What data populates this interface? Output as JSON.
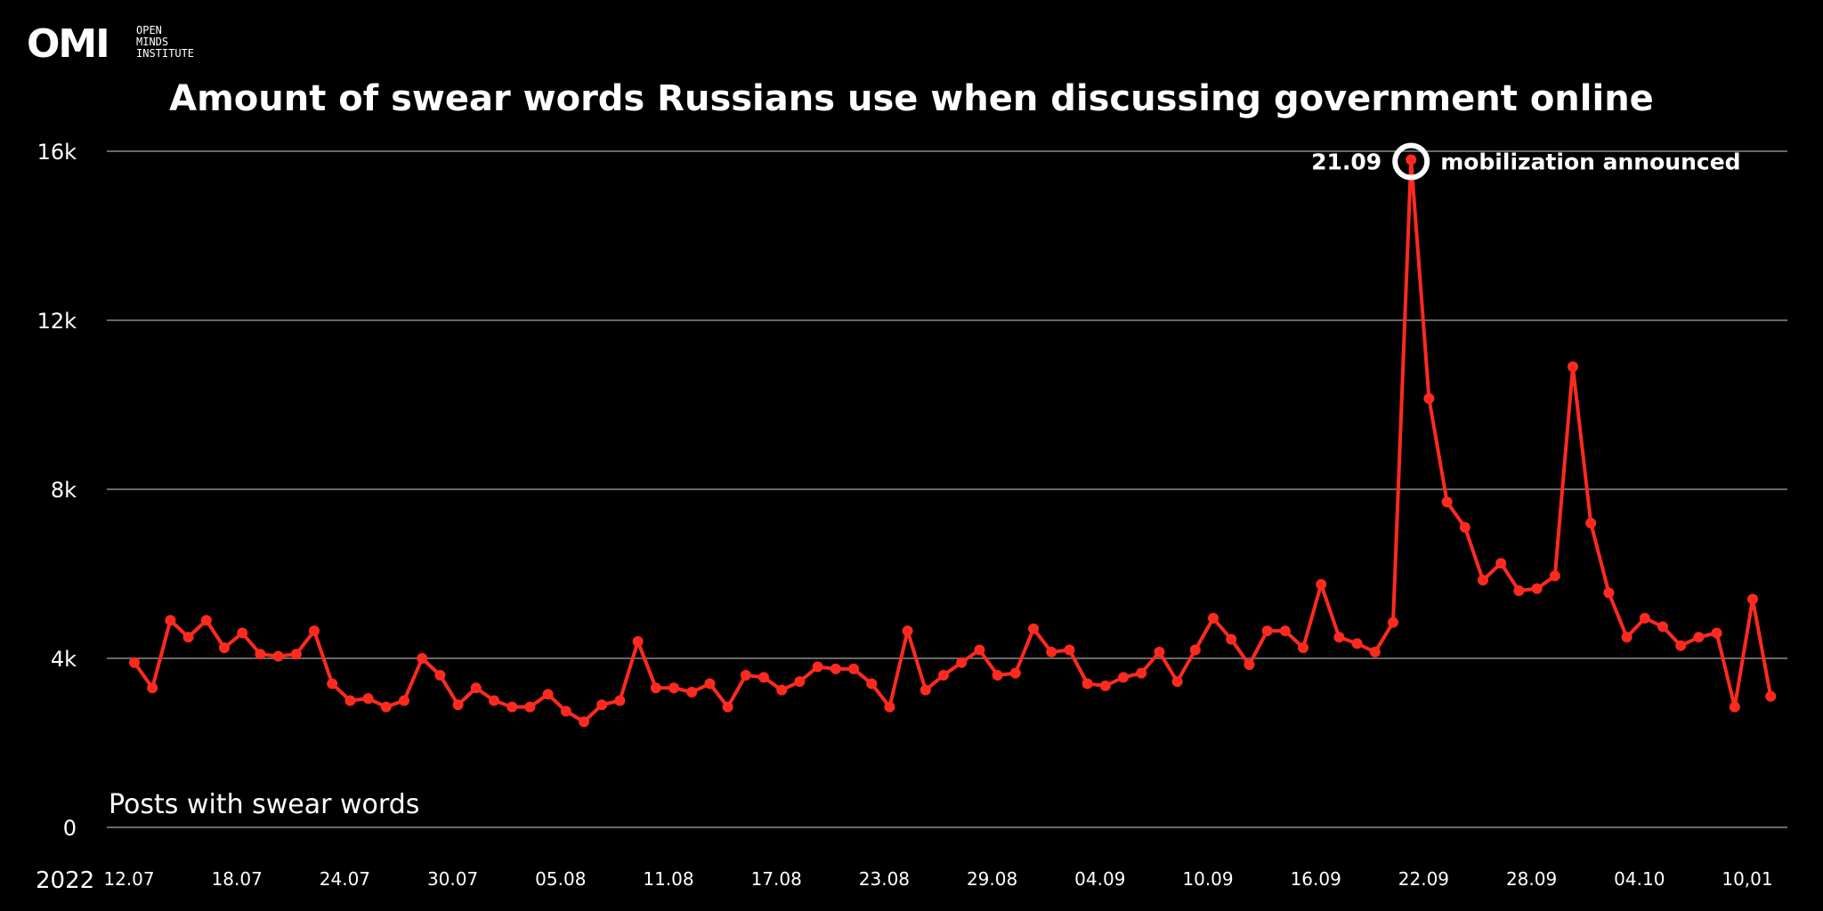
{
  "logo": {
    "mark": "OMI",
    "text": "OPEN\nMINDS\nINSTITUTE"
  },
  "chart_data": {
    "type": "line",
    "title": "Amount of swear words Russians use when discussing government online",
    "year_label": "2022",
    "series_label": "Posts with swear words",
    "color": "#ff2a1f",
    "grid": true,
    "ylim": [
      0,
      16000
    ],
    "y_ticks": [
      {
        "value": 0,
        "label": "0"
      },
      {
        "value": 4000,
        "label": "4k"
      },
      {
        "value": 8000,
        "label": "8k"
      },
      {
        "value": 12000,
        "label": "12k"
      },
      {
        "value": 16000,
        "label": "16k"
      }
    ],
    "x_ticks": [
      {
        "index": 0,
        "label": "12.07"
      },
      {
        "index": 6,
        "label": "18.07"
      },
      {
        "index": 12,
        "label": "24.07"
      },
      {
        "index": 18,
        "label": "30.07"
      },
      {
        "index": 24,
        "label": "05.08"
      },
      {
        "index": 30,
        "label": "11.08"
      },
      {
        "index": 36,
        "label": "17.08"
      },
      {
        "index": 42,
        "label": "23.08"
      },
      {
        "index": 48,
        "label": "29.08"
      },
      {
        "index": 54,
        "label": "04.09"
      },
      {
        "index": 60,
        "label": "10.09"
      },
      {
        "index": 66,
        "label": "16.09"
      },
      {
        "index": 72,
        "label": "22.09"
      },
      {
        "index": 78,
        "label": "28.09"
      },
      {
        "index": 84,
        "label": "04.10"
      },
      {
        "index": 90,
        "label": "10,01"
      }
    ],
    "values": [
      3900,
      3300,
      4900,
      4500,
      4900,
      4250,
      4600,
      4100,
      4050,
      4100,
      4650,
      3400,
      3000,
      3050,
      2850,
      3000,
      4000,
      3600,
      2900,
      3300,
      3000,
      2850,
      2850,
      3150,
      2750,
      2500,
      2900,
      3000,
      4400,
      3300,
      3300,
      3200,
      3400,
      2850,
      3600,
      3550,
      3250,
      3450,
      3800,
      3750,
      3750,
      3400,
      2850,
      4650,
      3250,
      3600,
      3900,
      4200,
      3600,
      3650,
      4700,
      4150,
      4200,
      3400,
      3350,
      3550,
      3650,
      4150,
      3450,
      4200,
      4950,
      4450,
      3850,
      4650,
      4650,
      4250,
      5750,
      4500,
      4350,
      4150,
      4850,
      15800,
      10150,
      7700,
      7100,
      5850,
      6250,
      5600,
      5650,
      5950,
      10900,
      7200,
      5550,
      4500,
      4950,
      4750,
      4300,
      4500,
      4600,
      2850,
      5400,
      3100
    ],
    "annotation": {
      "index": 71,
      "date_label": "21.09",
      "text": "mobilization announced"
    }
  }
}
